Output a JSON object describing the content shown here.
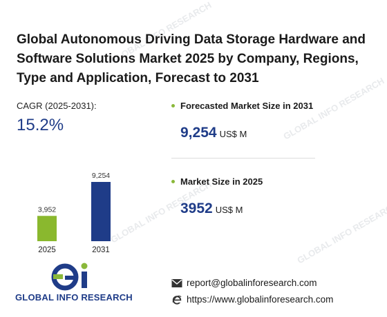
{
  "title": "Global Autonomous Driving Data Storage Hardware and Software Solutions Market 2025 by Company, Regions, Type and Application, Forecast to 2031",
  "cagr": {
    "label": "CAGR (2025-2031):",
    "value": "15.2%"
  },
  "forecast": {
    "label": "Forecasted Market Size in 2031",
    "value": "9,254",
    "unit": "US$ M"
  },
  "current": {
    "label": "Market Size in 2025",
    "value": "3952",
    "unit": "US$ M"
  },
  "chart_data": {
    "type": "bar",
    "categories": [
      "2025",
      "2031"
    ],
    "values": [
      3952,
      9254
    ],
    "value_labels": [
      "3,952",
      "9,254"
    ],
    "colors": [
      "#8ab82e",
      "#1f3c88"
    ],
    "ylim": [
      0,
      9254
    ],
    "grid": false
  },
  "logo": {
    "text": "GLOBAL INFO RESEARCH",
    "mark": "Gi"
  },
  "contact": {
    "email": "report@globalinforesearch.com",
    "website": "https://www.globalinforesearch.com",
    "email_icon": "envelope-icon",
    "web_icon": "internet-explorer-icon"
  },
  "watermark": "GLOBAL INFO RESEARCH",
  "colors": {
    "accent": "#1f3c88",
    "green": "#8ab83a"
  }
}
